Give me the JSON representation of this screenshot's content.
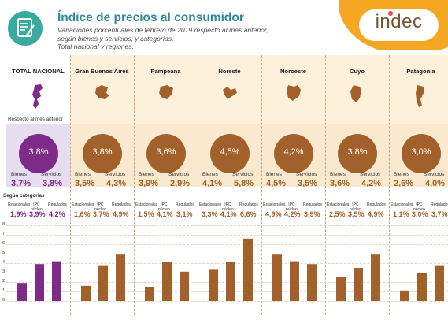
{
  "header": {
    "title": "Índice de precios al consumidor",
    "subtitle_line1": "Variaciones porcentuales de febrero de 2019 respecto al mes anterior,",
    "subtitle_line2": "según bienes y servicios, y categorías.",
    "subtitle_line3": "Total nacional y regiones.",
    "brand": "indec"
  },
  "labels": {
    "respecto": "Respecto al mes anterior",
    "segun": "Según categorías",
    "bienes": "Bienes",
    "servicios": "Servicios",
    "estacionales": "Estacionales",
    "ipc1": "IPC",
    "ipc2": "núcleo",
    "regulados": "Regulados"
  },
  "chart_data": {
    "type": "bar",
    "ylim": [
      0,
      8
    ],
    "yticks": [
      "0",
      "1",
      "2",
      "3",
      "4",
      "5",
      "6",
      "7",
      "8"
    ],
    "categories": [
      "Estacionales",
      "IPC núcleo",
      "Regulados"
    ],
    "regions": [
      {
        "name": "TOTAL NACIONAL",
        "total": "3,8%",
        "bienes": "3,7%",
        "servicios": "3,8%",
        "values": [
          1.9,
          3.9,
          4.2
        ],
        "labels": [
          "1,9%",
          "3,9%",
          "4,2%"
        ]
      },
      {
        "name": "Gran Buenos Aires",
        "total": "3,8%",
        "bienes": "3,5%",
        "servicios": "4,3%",
        "values": [
          1.6,
          3.7,
          4.9
        ],
        "labels": [
          "1,6%",
          "3,7%",
          "4,9%"
        ]
      },
      {
        "name": "Pampeana",
        "total": "3,6%",
        "bienes": "3,9%",
        "servicios": "2,9%",
        "values": [
          1.5,
          4.1,
          3.1
        ],
        "labels": [
          "1,5%",
          "4,1%",
          "3,1%"
        ]
      },
      {
        "name": "Noreste",
        "total": "4,5%",
        "bienes": "4,1%",
        "servicios": "5,8%",
        "values": [
          3.3,
          4.1,
          6.6
        ],
        "labels": [
          "3,3%",
          "4,1%",
          "6,6%"
        ]
      },
      {
        "name": "Noroeste",
        "total": "4,2%",
        "bienes": "4,5%",
        "servicios": "3,5%",
        "values": [
          4.9,
          4.2,
          3.9
        ],
        "labels": [
          "4,9%",
          "4,2%",
          "3,9%"
        ]
      },
      {
        "name": "Cuyo",
        "total": "3,8%",
        "bienes": "3,6%",
        "servicios": "4,2%",
        "values": [
          2.5,
          3.5,
          4.9
        ],
        "labels": [
          "2,5%",
          "3,5%",
          "4,9%"
        ]
      },
      {
        "name": "Patagonia",
        "total": "3,0%",
        "bienes": "2,6%",
        "servicios": "4,0%",
        "values": [
          1.1,
          3.0,
          3.7
        ],
        "labels": [
          "1,1%",
          "3,0%",
          "3,7%"
        ]
      }
    ]
  },
  "colors": {
    "regional": "#a2612a",
    "national": "#7d2a89",
    "title": "#2f8a9a",
    "brand_orange": "#f5a623"
  }
}
